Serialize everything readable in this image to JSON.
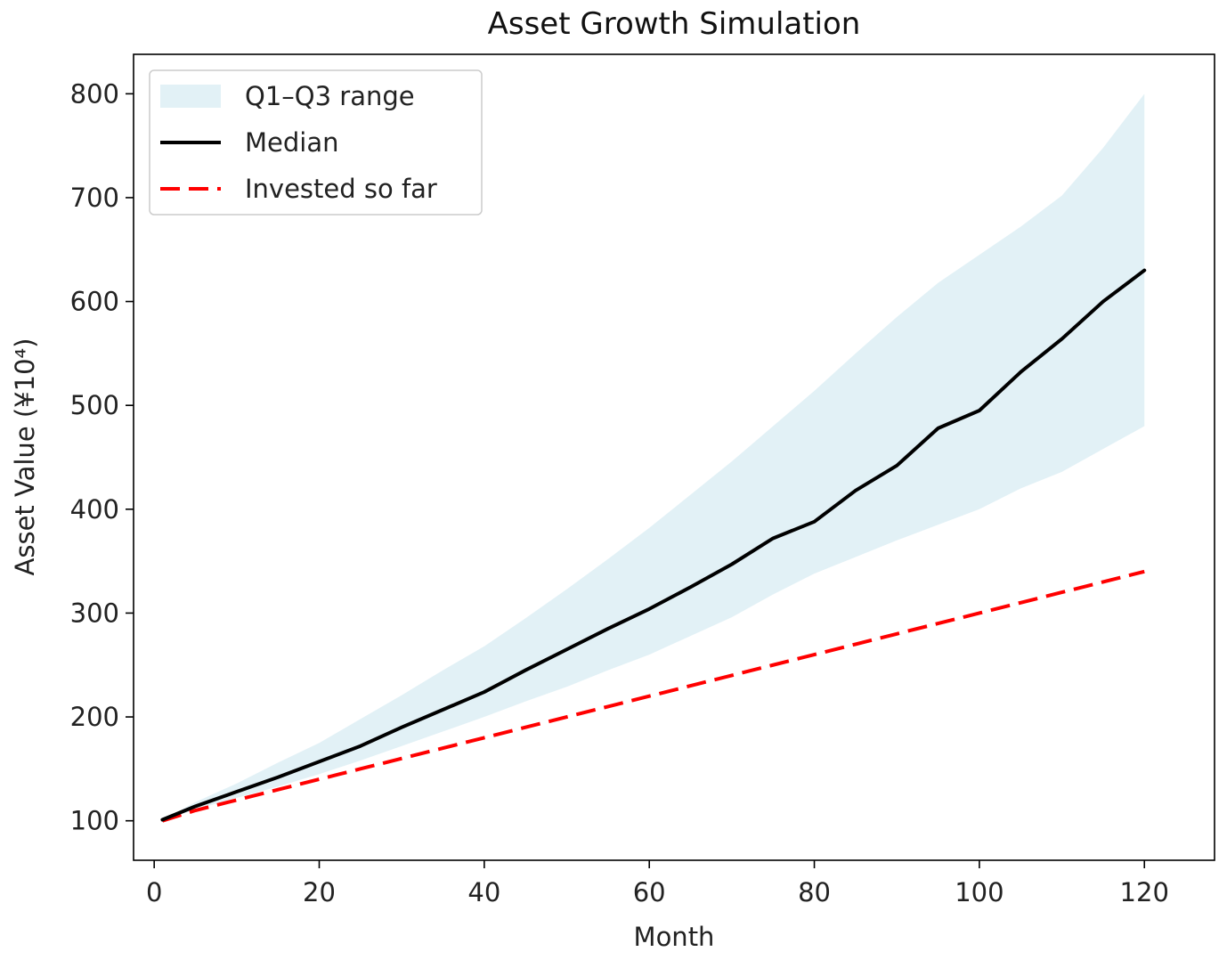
{
  "chart_data": {
    "type": "line",
    "title": "Asset Growth Simulation",
    "xlabel": "Month",
    "ylabel": "Asset Value (¥10⁴)",
    "xlim": [
      -2.5,
      128.5
    ],
    "ylim": [
      62,
      838
    ],
    "xticks": [
      0,
      20,
      40,
      60,
      80,
      100,
      120
    ],
    "yticks": [
      100,
      200,
      300,
      400,
      500,
      600,
      700,
      800
    ],
    "grid": false,
    "legend_position": "top-left",
    "x": [
      1,
      5,
      10,
      15,
      20,
      25,
      30,
      35,
      40,
      45,
      50,
      55,
      60,
      65,
      70,
      75,
      80,
      85,
      90,
      95,
      100,
      105,
      110,
      115,
      120
    ],
    "series": [
      {
        "name": "Q1–Q3 range",
        "style": "band",
        "color": "#add8e6",
        "lower": [
          100,
          111,
          122,
          133,
          145,
          158,
          172,
          186,
          200,
          215,
          229,
          245,
          260,
          278,
          296,
          318,
          338,
          354,
          370,
          385,
          400,
          420,
          436,
          458,
          480
        ],
        "upper": [
          101,
          118,
          136,
          156,
          175,
          198,
          221,
          245,
          268,
          295,
          323,
          352,
          382,
          414,
          446,
          480,
          514,
          550,
          585,
          618,
          645,
          672,
          702,
          748,
          800
        ]
      },
      {
        "name": "Median",
        "style": "solid",
        "color": "#000000",
        "values": [
          101,
          114,
          128,
          142,
          157,
          172,
          190,
          207,
          224,
          245,
          265,
          285,
          304,
          325,
          347,
          372,
          388,
          418,
          442,
          478,
          495,
          532,
          564,
          600,
          630
        ]
      },
      {
        "name": "Invested so far",
        "style": "dashed",
        "color": "#ff0000",
        "values": [
          100,
          110,
          120,
          130,
          140,
          150,
          160,
          170,
          180,
          190,
          200,
          210,
          220,
          230,
          240,
          250,
          260,
          270,
          280,
          290,
          300,
          310,
          320,
          330,
          340
        ]
      }
    ]
  }
}
